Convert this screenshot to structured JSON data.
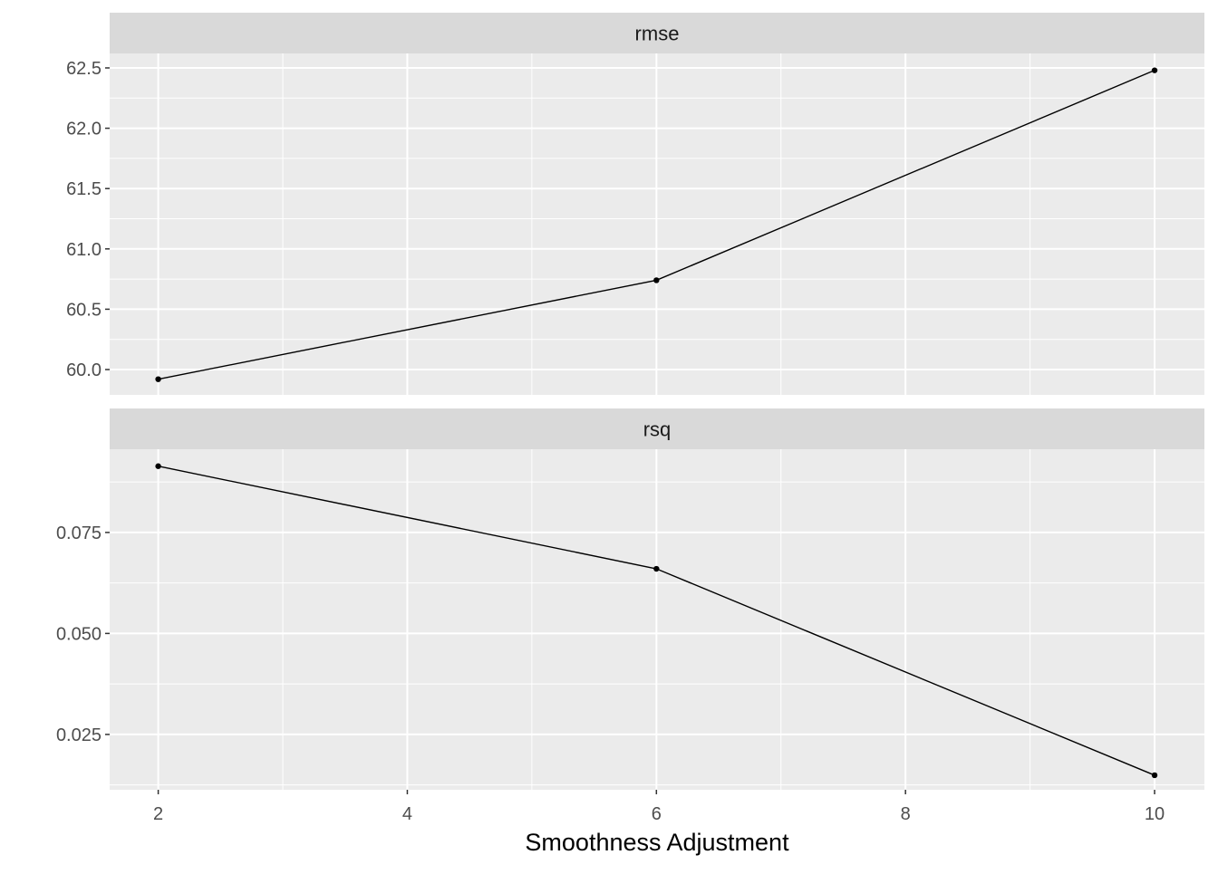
{
  "chart_data": {
    "type": "line",
    "xlabel": "Smoothness Adjustment",
    "x_ticks": [
      2,
      4,
      6,
      8,
      10
    ],
    "x_tick_labels": [
      "2",
      "4",
      "6",
      "8",
      "10"
    ],
    "xlim": [
      1.61,
      10.4
    ],
    "grid": true,
    "facets": [
      {
        "name": "rmse",
        "x": [
          2,
          6,
          10
        ],
        "y": [
          59.92,
          60.74,
          62.48
        ],
        "ylim": [
          59.79,
          62.62
        ],
        "y_ticks": [
          60.0,
          60.5,
          61.0,
          61.5,
          62.0,
          62.5
        ],
        "y_tick_labels": [
          "60.0",
          "60.5",
          "61.0",
          "61.5",
          "62.0",
          "62.5"
        ]
      },
      {
        "name": "rsq",
        "x": [
          2,
          6,
          10
        ],
        "y": [
          0.0914,
          0.066,
          0.0149
        ],
        "ylim": [
          0.0113,
          0.0956
        ],
        "y_ticks": [
          0.025,
          0.05,
          0.075
        ],
        "y_tick_labels": [
          "0.025",
          "0.050",
          "0.075"
        ]
      }
    ],
    "colors": {
      "panel": "#EBEBEB",
      "strip": "#D9D9D9",
      "grid": "#FFFFFF",
      "line": "#000000",
      "text": "#4D4D4D"
    }
  }
}
